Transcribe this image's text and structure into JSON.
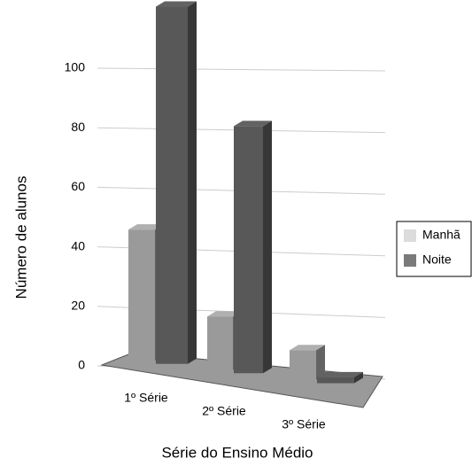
{
  "chart_data": {
    "type": "bar3d",
    "categories": [
      "1º Série",
      "2º Série",
      "3º Série"
    ],
    "series": [
      {
        "name": "Manhã",
        "color": "#dcdcdc",
        "values": [
          44,
          18,
          10
        ]
      },
      {
        "name": "Noite",
        "color": "#7a7a7a",
        "values": [
          120,
          83,
          2
        ]
      }
    ],
    "ylim": [
      0,
      100
    ],
    "yticks": [
      0,
      20,
      40,
      60,
      80,
      100
    ],
    "grid": true,
    "ylabel": "Número de alunos",
    "xlabel": "Série do Ensino Médio",
    "legend": "right"
  }
}
